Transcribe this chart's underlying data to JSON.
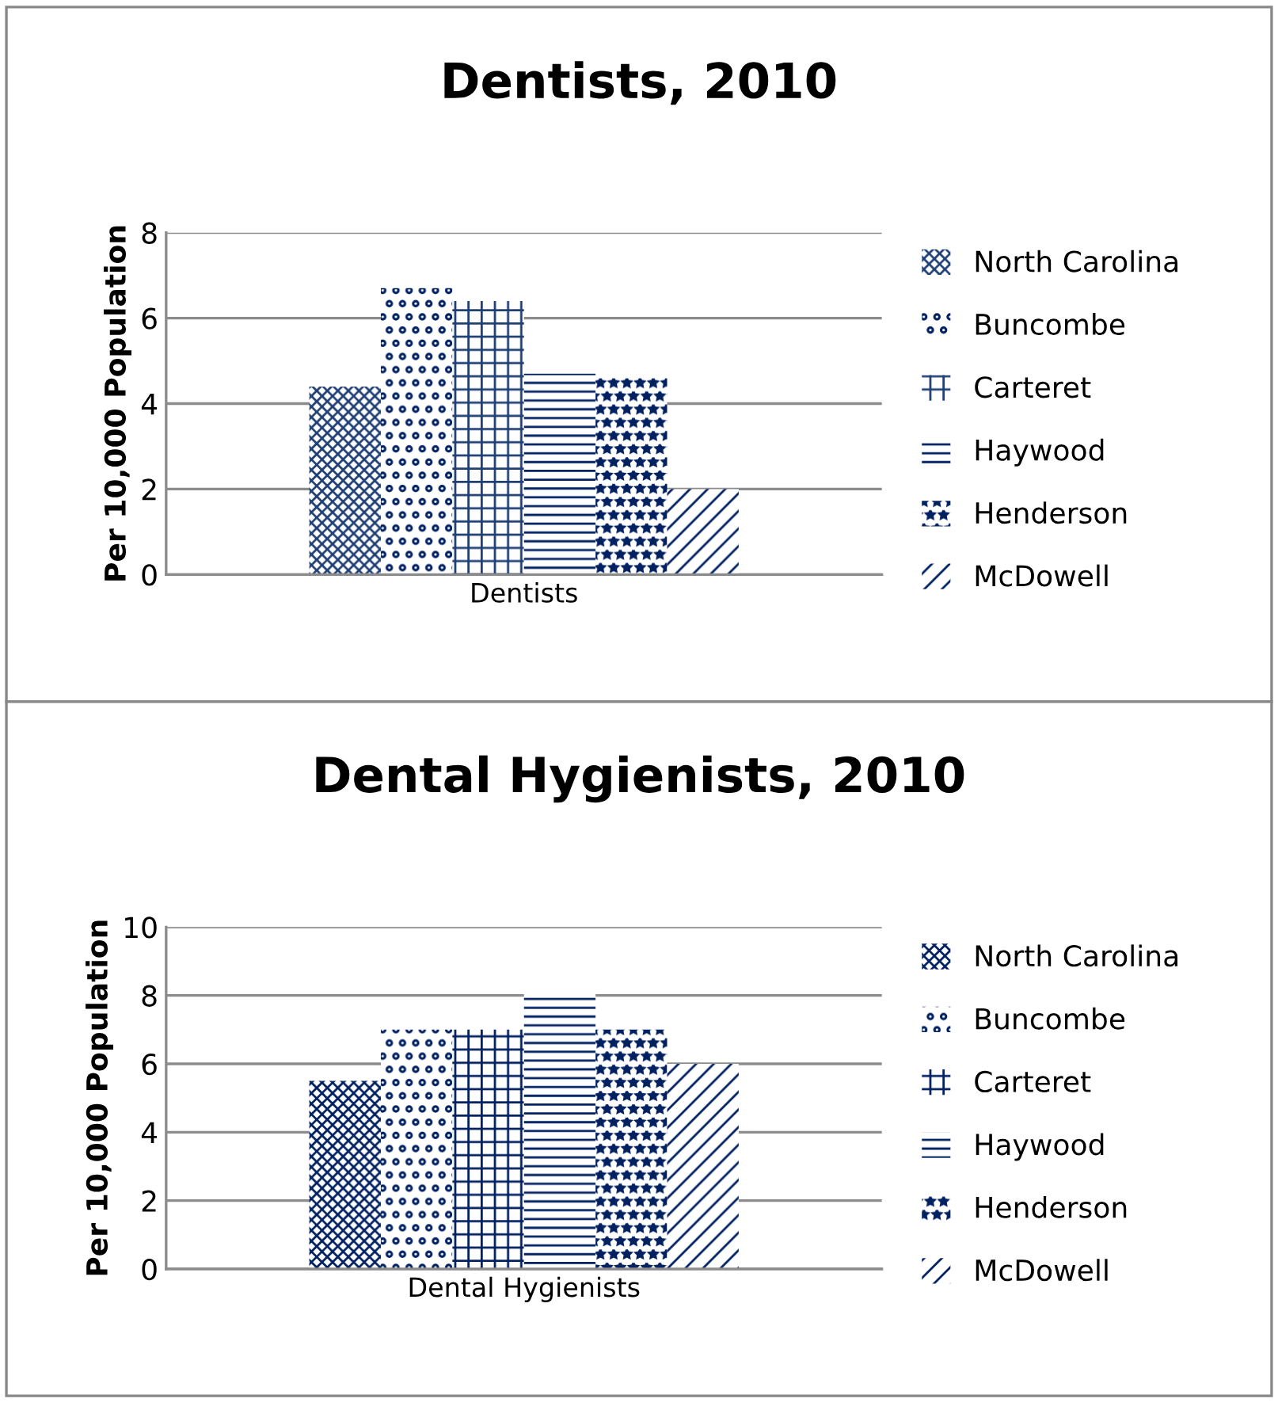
{
  "chart_data": [
    {
      "type": "bar",
      "title": "Dentists, 2010",
      "ylabel": "Per 10,000 Population",
      "categories": [
        "Dentists"
      ],
      "ylim": [
        0,
        8
      ],
      "yticks": [
        0,
        2,
        4,
        6,
        8
      ],
      "grid": "y",
      "legend": "right",
      "series": [
        {
          "name": "North Carolina",
          "color": "#1f3f74",
          "values": [
            4.4
          ]
        },
        {
          "name": "Buncombe",
          "color": "#002060",
          "values": [
            6.7
          ]
        },
        {
          "name": "Carteret",
          "color": "#1f3f74",
          "values": [
            6.4
          ]
        },
        {
          "name": "Haywood",
          "color": "#002060",
          "values": [
            4.7
          ]
        },
        {
          "name": "Henderson",
          "color": "#002060",
          "values": [
            4.6
          ]
        },
        {
          "name": "McDowell",
          "color": "#002060",
          "values": [
            2.0
          ]
        }
      ]
    },
    {
      "type": "bar",
      "title": "Dental Hygienists, 2010",
      "ylabel": "Per 10,000 Population",
      "categories": [
        "Dental Hygienists"
      ],
      "ylim": [
        0,
        10
      ],
      "yticks": [
        0,
        2,
        4,
        6,
        8,
        10
      ],
      "grid": "y",
      "legend": "right",
      "series": [
        {
          "name": "North Carolina",
          "color": "#002060",
          "values": [
            5.5
          ]
        },
        {
          "name": "Buncombe",
          "color": "#002060",
          "values": [
            7.0
          ]
        },
        {
          "name": "Carteret",
          "color": "#002060",
          "values": [
            7.0
          ]
        },
        {
          "name": "Haywood",
          "color": "#002060",
          "values": [
            8.1
          ]
        },
        {
          "name": "Henderson",
          "color": "#002060",
          "values": [
            7.0
          ]
        },
        {
          "name": "McDowell",
          "color": "#002060",
          "values": [
            6.0
          ]
        }
      ]
    }
  ]
}
